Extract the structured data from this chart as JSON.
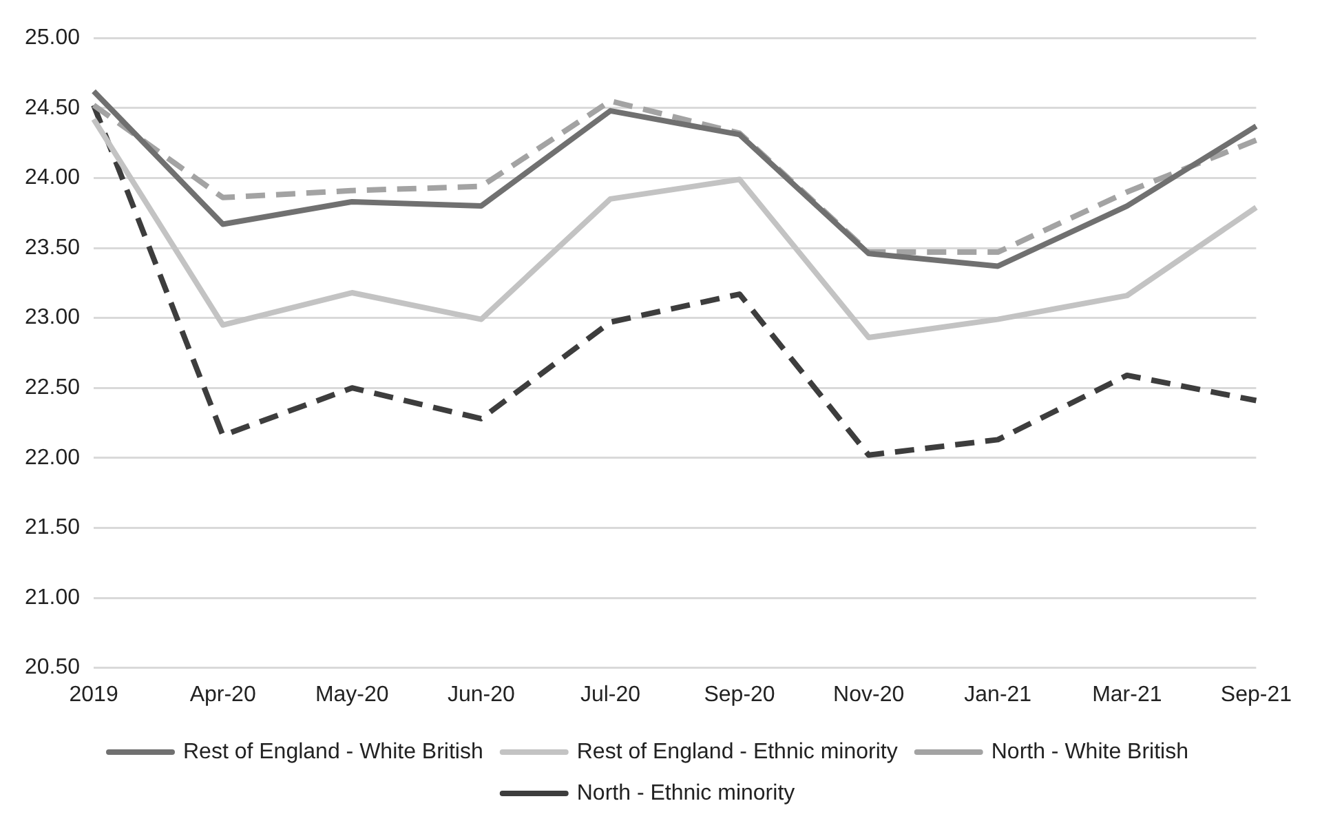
{
  "chart_data": {
    "type": "line",
    "categories": [
      "2019",
      "Apr-20",
      "May-20",
      "Jun-20",
      "Jul-20",
      "Sep-20",
      "Nov-20",
      "Jan-21",
      "Mar-21",
      "Sep-21"
    ],
    "series": [
      {
        "name": "Rest of England - White British",
        "color": "#707070",
        "line_style": "solid",
        "values": [
          24.62,
          23.67,
          23.83,
          23.8,
          24.48,
          24.31,
          23.46,
          23.37,
          23.8,
          24.37
        ]
      },
      {
        "name": "Rest of England - Ethnic minority",
        "color": "#c3c3c3",
        "line_style": "solid",
        "values": [
          24.42,
          22.95,
          23.18,
          22.99,
          23.85,
          23.99,
          22.86,
          22.99,
          23.16,
          23.79
        ]
      },
      {
        "name": "North - White British",
        "color": "#a3a3a3",
        "line_style": "dashed",
        "values": [
          24.52,
          23.86,
          23.91,
          23.94,
          24.55,
          24.32,
          23.47,
          23.47,
          23.9,
          24.27
        ]
      },
      {
        "name": "North - Ethnic minority",
        "color": "#3d3d3d",
        "line_style": "dashed",
        "values": [
          24.52,
          22.16,
          22.5,
          22.28,
          22.97,
          23.17,
          22.02,
          22.13,
          22.59,
          22.41
        ]
      }
    ],
    "ylim": [
      20.5,
      25
    ],
    "yticks": [
      {
        "value": 20.5,
        "label": "20.50"
      },
      {
        "value": 21,
        "label": "21.00"
      },
      {
        "value": 21.5,
        "label": "21.50"
      },
      {
        "value": 22,
        "label": "22.00"
      },
      {
        "value": 22.5,
        "label": "22.50"
      },
      {
        "value": 23,
        "label": "23.00"
      },
      {
        "value": 23.5,
        "label": "23.50"
      },
      {
        "value": 24,
        "label": "24.00"
      },
      {
        "value": 24.5,
        "label": "24.50"
      },
      {
        "value": 25,
        "label": "25.00"
      }
    ],
    "grid": "y",
    "legend": "bottom",
    "marker": "none"
  }
}
